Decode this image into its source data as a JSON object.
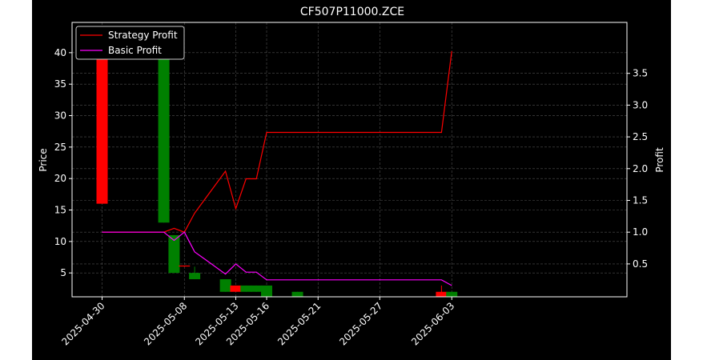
{
  "chart_data": {
    "type": "candlestick_with_lines",
    "title": "CF507P11000.ZCE",
    "ylabel_left": "Price",
    "ylabel_right": "Profit",
    "grid": true,
    "legend_placement": "top-left",
    "background": "#000000",
    "text_color": "#ffffff",
    "up_color": "#ff0000",
    "down_color": "#008000",
    "yticks_left": [
      "5",
      "10",
      "15",
      "20",
      "25",
      "30",
      "35",
      "40"
    ],
    "yticks_right": [
      "0.5",
      "1.0",
      "1.5",
      "2.0",
      "2.5",
      "3.0",
      "3.5"
    ],
    "xticks": [
      "2025-04-30",
      "2025-05-08",
      "2025-05-13",
      "2025-05-16",
      "2025-05-21",
      "2025-05-27",
      "2025-06-03"
    ],
    "candles": [
      {
        "date": "2025-04-30",
        "open": 16.0,
        "close": 44.0,
        "high": 44.0,
        "low": 16.0
      },
      {
        "date": "2025-05-06",
        "open": 44.0,
        "close": 13.0,
        "high": 44.0,
        "low": 13.0
      },
      {
        "date": "2025-05-07",
        "open": 11.0,
        "close": 5.0,
        "high": 11.0,
        "low": 5.0
      },
      {
        "date": "2025-05-08",
        "open": 6.0,
        "close": 6.1,
        "high": 6.1,
        "low": 6.0
      },
      {
        "date": "2025-05-09",
        "open": 5.0,
        "close": 4.0,
        "high": 6.0,
        "low": 4.0
      },
      {
        "date": "2025-05-12",
        "open": 4.0,
        "close": 2.0,
        "high": 4.0,
        "low": 2.0
      },
      {
        "date": "2025-05-13",
        "open": 2.0,
        "close": 3.0,
        "high": 3.0,
        "low": 2.0
      },
      {
        "date": "2025-05-14",
        "open": 3.0,
        "close": 2.0,
        "high": 3.0,
        "low": 2.0
      },
      {
        "date": "2025-05-15",
        "open": 3.0,
        "close": 2.0,
        "high": 3.0,
        "low": 2.0
      },
      {
        "date": "2025-05-16",
        "open": 3.0,
        "close": 1.0,
        "high": 3.0,
        "low": 1.0
      },
      {
        "date": "2025-05-19",
        "open": 2.0,
        "close": 1.0,
        "high": 2.0,
        "low": 1.0
      },
      {
        "date": "2025-06-02",
        "open": 1.0,
        "close": 2.0,
        "high": 3.0,
        "low": 1.0
      },
      {
        "date": "2025-06-03",
        "open": 2.0,
        "close": 1.0,
        "high": 2.0,
        "low": 1.0
      }
    ],
    "series": [
      {
        "name": "Strategy Profit",
        "color": "#ff0000",
        "points": [
          {
            "date": "2025-04-30",
            "value": 1.0
          },
          {
            "date": "2025-05-06",
            "value": 1.0
          },
          {
            "date": "2025-05-07",
            "value": 1.06
          },
          {
            "date": "2025-05-08",
            "value": 1.0
          },
          {
            "date": "2025-05-09",
            "value": 1.3
          },
          {
            "date": "2025-05-12",
            "value": 1.96
          },
          {
            "date": "2025-05-13",
            "value": 1.37
          },
          {
            "date": "2025-05-14",
            "value": 1.84
          },
          {
            "date": "2025-05-15",
            "value": 1.84
          },
          {
            "date": "2025-05-16",
            "value": 2.57
          },
          {
            "date": "2025-06-02",
            "value": 2.57
          },
          {
            "date": "2025-06-03",
            "value": 3.85
          }
        ]
      },
      {
        "name": "Basic Profit",
        "color": "#ff00ff",
        "points": [
          {
            "date": "2025-04-30",
            "value": 1.0
          },
          {
            "date": "2025-05-06",
            "value": 1.0
          },
          {
            "date": "2025-05-07",
            "value": 0.87
          },
          {
            "date": "2025-05-08",
            "value": 1.0
          },
          {
            "date": "2025-05-09",
            "value": 0.69
          },
          {
            "date": "2025-05-12",
            "value": 0.34
          },
          {
            "date": "2025-05-13",
            "value": 0.5
          },
          {
            "date": "2025-05-14",
            "value": 0.37
          },
          {
            "date": "2025-05-15",
            "value": 0.37
          },
          {
            "date": "2025-05-16",
            "value": 0.25
          },
          {
            "date": "2025-05-19",
            "value": 0.25
          },
          {
            "date": "2025-06-02",
            "value": 0.25
          },
          {
            "date": "2025-06-03",
            "value": 0.16
          }
        ]
      }
    ]
  }
}
